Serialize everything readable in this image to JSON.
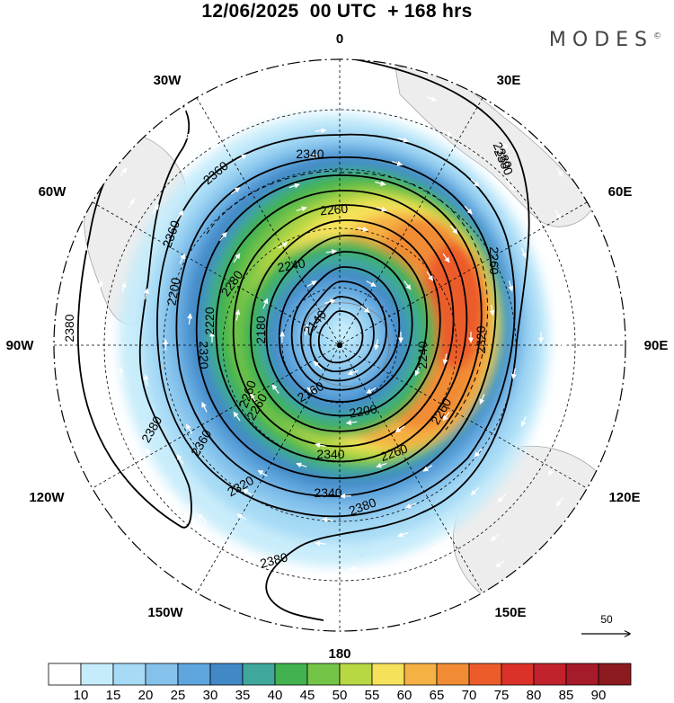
{
  "header": {
    "title": "12/06/2025  00 UTC  + 168 hrs",
    "brand": "MODES"
  },
  "map": {
    "projection": "south polar stereographic",
    "longitude_labels": [
      {
        "key": "lon-0",
        "text": "0"
      },
      {
        "key": "lon-30e",
        "text": "30E"
      },
      {
        "key": "lon-60e",
        "text": "60E"
      },
      {
        "key": "lon-90e",
        "text": "90E"
      },
      {
        "key": "lon-120e",
        "text": "120E"
      },
      {
        "key": "lon-150e",
        "text": "150E"
      },
      {
        "key": "lon-180",
        "text": "180"
      },
      {
        "key": "lon-150w",
        "text": "150W"
      },
      {
        "key": "lon-120w",
        "text": "120W"
      },
      {
        "key": "lon-90w",
        "text": "90W"
      },
      {
        "key": "lon-60w",
        "text": "60W"
      },
      {
        "key": "lon-30w",
        "text": "30W"
      }
    ],
    "contour_labels": [
      "2340",
      "2360",
      "2380",
      "2360",
      "2280",
      "2260",
      "2240",
      "2200",
      "2220",
      "2180",
      "2140",
      "2160",
      "2200",
      "2240",
      "2260",
      "2260",
      "2320",
      "2340",
      "2320",
      "2360",
      "2380",
      "2380",
      "2340",
      "2380",
      "2380",
      "2320",
      "2260",
      "2260",
      "2260",
      "2380"
    ],
    "wind_vector_reference": "50"
  },
  "legend": {
    "colors": [
      "#ffffff",
      "#c6ecfb",
      "#a6daf5",
      "#84c2ec",
      "#5ea6dd",
      "#4288c7",
      "#3fa79c",
      "#41b24f",
      "#74c447",
      "#b8d843",
      "#f6e25a",
      "#f5b143",
      "#f18c34",
      "#ec5c2b",
      "#db3128",
      "#c1222c",
      "#a61b2a",
      "#8c1a1e"
    ],
    "ticks": [
      "10",
      "15",
      "20",
      "25",
      "30",
      "35",
      "40",
      "45",
      "50",
      "55",
      "60",
      "65",
      "70",
      "75",
      "80",
      "85",
      "90"
    ]
  }
}
